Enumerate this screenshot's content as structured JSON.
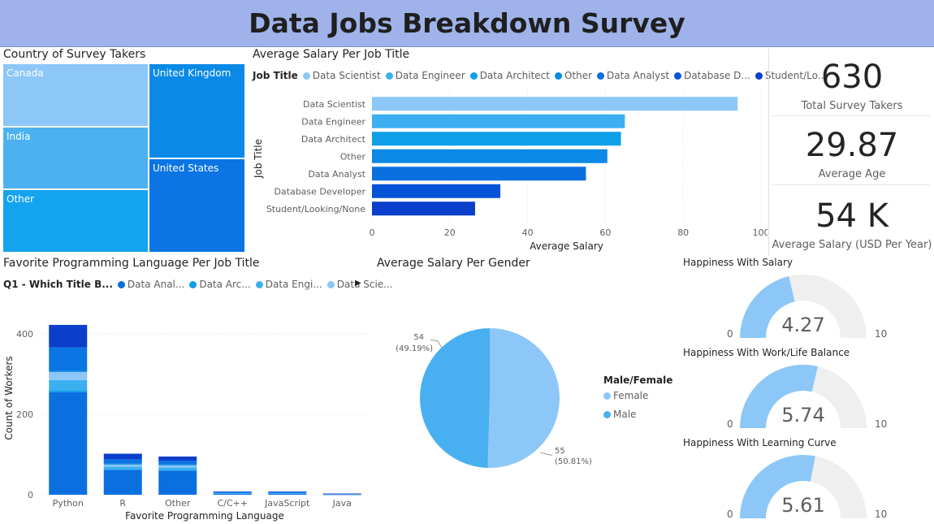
{
  "header": {
    "title": "Data Jobs Breakdown Survey"
  },
  "cards": [
    {
      "value": "630",
      "label": "Total Survey Takers"
    },
    {
      "value": "29.87",
      "label": "Average Age"
    },
    {
      "value": "54 K",
      "label": "Average Salary (USD Per Year)"
    }
  ],
  "treemap": {
    "title": "Country of Survey Takers",
    "items": [
      {
        "label": "Canada",
        "color": "#8cc7f7"
      },
      {
        "label": "India",
        "color": "#4cb1f1"
      },
      {
        "label": "Other",
        "color": "#14a3ee"
      },
      {
        "label": "United Kingdom",
        "color": "#0a8ae6"
      },
      {
        "label": "United States",
        "color": "#0a75e3"
      }
    ]
  },
  "salary_legend": {
    "label": "Job Title",
    "items": [
      {
        "name": "Data Scientist",
        "color": "#8cc7f7"
      },
      {
        "name": "Data Engineer",
        "color": "#3caff0"
      },
      {
        "name": "Data Architect",
        "color": "#0f9fe9"
      },
      {
        "name": "Other",
        "color": "#0a8ae6"
      },
      {
        "name": "Data Analyst",
        "color": "#0a70e0"
      },
      {
        "name": "Database D...",
        "color": "#0754d8"
      },
      {
        "name": "Student/Lo...",
        "color": "#0a3ecb"
      }
    ]
  },
  "lang_legend": {
    "label": "Q1 - Which Title B...",
    "items": [
      {
        "name": "Data Anal...",
        "color": "#0a70e0"
      },
      {
        "name": "Data Arc...",
        "color": "#0f9fe9"
      },
      {
        "name": "Data Engi...",
        "color": "#3caff0"
      },
      {
        "name": "Data Scie...",
        "color": "#8cc7f7"
      }
    ],
    "arrow": "▶"
  },
  "pie_legend": {
    "title": "Male/Female",
    "items": [
      {
        "name": "Female",
        "color": "#8cc7f7"
      },
      {
        "name": "Male",
        "color": "#48b0f1"
      }
    ]
  },
  "chart_data": [
    {
      "type": "bar",
      "orientation": "horizontal",
      "title": "Average Salary Per Job Title",
      "xlabel": "Average Salary",
      "ylabel": "Job Title",
      "categories": [
        "Data Scientist",
        "Data Engineer",
        "Data Architect",
        "Other",
        "Data Analyst",
        "Database Developer",
        "Student/Looking/None"
      ],
      "values": [
        94,
        65,
        64,
        60.5,
        55,
        33,
        26.5
      ],
      "colors": [
        "#8cc7f7",
        "#3caff0",
        "#0f9fe9",
        "#0a8ae6",
        "#0a70e0",
        "#0754d8",
        "#0a3ecb"
      ],
      "xlim": [
        0,
        100
      ],
      "xticks": [
        "0",
        "20",
        "40",
        "60",
        "80",
        "100"
      ],
      "grid": true
    },
    {
      "type": "bar",
      "stacked": true,
      "title": "Favorite Programming Language Per Job Title",
      "xlabel": "Favorite Programming Language",
      "ylabel": "Count of Workers",
      "categories": [
        "Python",
        "R",
        "Other",
        "C/C++",
        "JavaScript",
        "Java"
      ],
      "ylim": [
        0,
        440
      ],
      "yticks": [
        "0",
        "200",
        "400"
      ],
      "series": [
        {
          "name": "Data Analyst",
          "color": "#0a70e0",
          "values": [
            255,
            62,
            60,
            3,
            3,
            1
          ]
        },
        {
          "name": "Data Architect",
          "color": "#0f9fe9",
          "values": [
            5,
            2,
            2,
            0,
            0,
            0
          ]
        },
        {
          "name": "Data Engineer",
          "color": "#3caff0",
          "values": [
            25,
            6,
            6,
            1,
            1,
            0
          ]
        },
        {
          "name": "Data Scientist",
          "color": "#8cc7f7",
          "values": [
            20,
            5,
            5,
            1,
            1,
            1
          ]
        },
        {
          "name": "Database Developer",
          "color": "#0a8ae6",
          "values": [
            3,
            2,
            2,
            1,
            1,
            0
          ]
        },
        {
          "name": "Other",
          "color": "#0a75e3",
          "values": [
            58,
            11,
            9,
            1,
            1,
            0
          ]
        },
        {
          "name": "Student/Looking/None",
          "color": "#0a3ecb",
          "values": [
            56,
            14,
            11,
            1,
            1,
            1
          ]
        }
      ]
    },
    {
      "type": "pie",
      "title": "Average Salary Per Gender",
      "slices": [
        {
          "name": "Female",
          "value": 55,
          "label": "55",
          "pct": "(50.81%)",
          "color": "#8cc7f7"
        },
        {
          "name": "Male",
          "value": 54,
          "label": "54",
          "pct": "(49.19%)",
          "color": "#48b0f1"
        }
      ]
    },
    {
      "type": "gauge",
      "gauges": [
        {
          "title": "Happiness With Salary",
          "value": 4.27,
          "display": "4.27",
          "min": 0,
          "max": 10,
          "min_label": "0",
          "max_label": "10"
        },
        {
          "title": "Happiness With Work/Life Balance",
          "value": 5.74,
          "display": "5.74",
          "min": 0,
          "max": 10,
          "min_label": "0",
          "max_label": "10"
        },
        {
          "title": "Happiness With Learning Curve",
          "value": 5.61,
          "display": "5.61",
          "min": 0,
          "max": 10,
          "min_label": "0",
          "max_label": "10"
        }
      ]
    }
  ]
}
